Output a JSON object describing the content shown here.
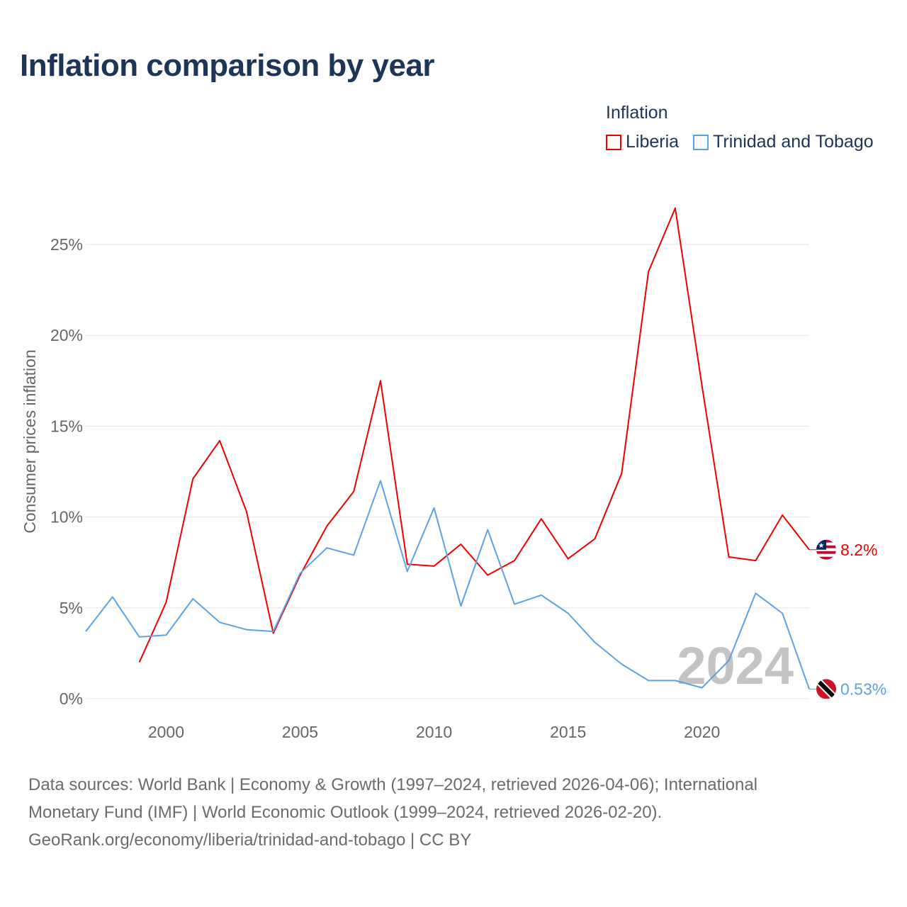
{
  "title": "Inflation comparison by year",
  "legend_title": "Inflation",
  "watermark_year": "2024",
  "source_lines": [
    "Data sources: World Bank | Economy & Growth (1997–2024, retrieved 2026-04-06); International",
    "Monetary Fund (IMF) | World Economic Outlook (1999–2024, retrieved 2026-02-20).",
    "GeoRank.org/economy/liberia/trinidad-and-tobago | CC BY"
  ],
  "chart_data": {
    "type": "line",
    "title": "Inflation comparison by year",
    "xlabel": "",
    "ylabel": "Consumer prices inflation",
    "xlim": [
      1997,
      2024
    ],
    "ylim": [
      0,
      27.5
    ],
    "xticks": [
      2000,
      2005,
      2010,
      2015,
      2020
    ],
    "yticks": [
      0,
      5,
      10,
      15,
      20,
      25
    ],
    "ytick_labels": [
      "0%",
      "5%",
      "10%",
      "15%",
      "20%",
      "25%"
    ],
    "legend_position": "top-right",
    "grid": true,
    "series": [
      {
        "name": "Liberia",
        "color": "#ee0000",
        "end_label": "8.2%",
        "x": [
          1999,
          2000,
          2001,
          2002,
          2003,
          2004,
          2005,
          2006,
          2007,
          2008,
          2009,
          2010,
          2011,
          2012,
          2013,
          2014,
          2015,
          2016,
          2017,
          2018,
          2019,
          2020,
          2021,
          2022,
          2023,
          2024
        ],
        "values": [
          2.0,
          5.3,
          12.1,
          14.2,
          10.3,
          3.6,
          6.8,
          9.5,
          11.4,
          17.5,
          7.4,
          7.3,
          8.5,
          6.8,
          7.6,
          9.9,
          7.7,
          8.8,
          12.4,
          23.5,
          27.0,
          17.2,
          7.8,
          7.6,
          10.1,
          8.2
        ]
      },
      {
        "name": "Trinidad and Tobago",
        "color": "#5ba3e6",
        "end_label": "0.53%",
        "x": [
          1997,
          1998,
          1999,
          2000,
          2001,
          2002,
          2003,
          2004,
          2005,
          2006,
          2007,
          2008,
          2009,
          2010,
          2011,
          2012,
          2013,
          2014,
          2015,
          2016,
          2017,
          2018,
          2019,
          2020,
          2021,
          2022,
          2023,
          2024
        ],
        "values": [
          3.7,
          5.6,
          3.4,
          3.5,
          5.5,
          4.2,
          3.8,
          3.7,
          6.9,
          8.3,
          7.9,
          12.0,
          7.0,
          10.5,
          5.1,
          9.3,
          5.2,
          5.7,
          4.7,
          3.1,
          1.9,
          1.0,
          1.0,
          0.6,
          2.1,
          5.8,
          4.7,
          0.53
        ]
      }
    ]
  }
}
